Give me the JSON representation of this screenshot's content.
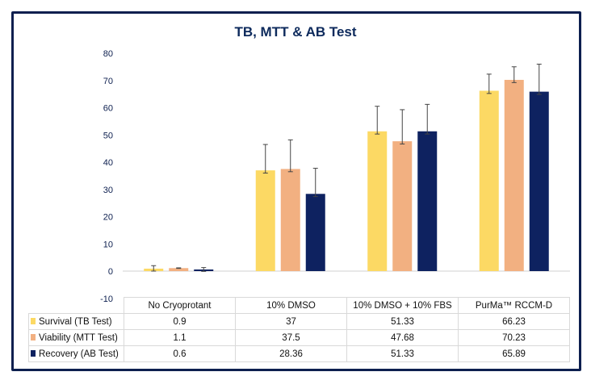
{
  "chart_data": {
    "type": "bar",
    "title": "TB, MTT & AB Test",
    "xlabel": "",
    "ylabel": "",
    "ylim": [
      -10,
      80
    ],
    "yticks": [
      -10,
      0,
      10,
      20,
      30,
      40,
      50,
      60,
      70,
      80
    ],
    "grid": false,
    "legend": "data-table-left",
    "categories": [
      "No Cryoprotant",
      "10% DMSO",
      "10% DMSO + 10% FBS",
      "PurMa™ RCCM-D"
    ],
    "series": [
      {
        "name": "Survival (TB Test)",
        "color": "#fcd964",
        "values": [
          0.9,
          37,
          51.33,
          66.23
        ],
        "display": [
          "0.9",
          "37",
          "51.33",
          "66.23"
        ],
        "err_plus": [
          1.1,
          9.5,
          9.2,
          6.1
        ],
        "err_minus": [
          0.9,
          1,
          1,
          1
        ]
      },
      {
        "name": "Viability (MTT Test)",
        "color": "#f2b081",
        "values": [
          1.1,
          37.5,
          47.68,
          70.23
        ],
        "display": [
          "1.1",
          "37.5",
          "47.68",
          "70.23"
        ],
        "err_plus": [
          0.1,
          10.7,
          11.6,
          4.8
        ],
        "err_minus": [
          0.1,
          1,
          1,
          1
        ]
      },
      {
        "name": "Recovery (AB Test)",
        "color": "#0e2260",
        "values": [
          0.6,
          28.36,
          51.33,
          65.89
        ],
        "display": [
          "0.6",
          "28.36",
          "51.33",
          "65.89"
        ],
        "err_plus": [
          0.7,
          9.4,
          9.9,
          10.1
        ],
        "err_minus": [
          0.7,
          1,
          1,
          1
        ]
      }
    ]
  }
}
